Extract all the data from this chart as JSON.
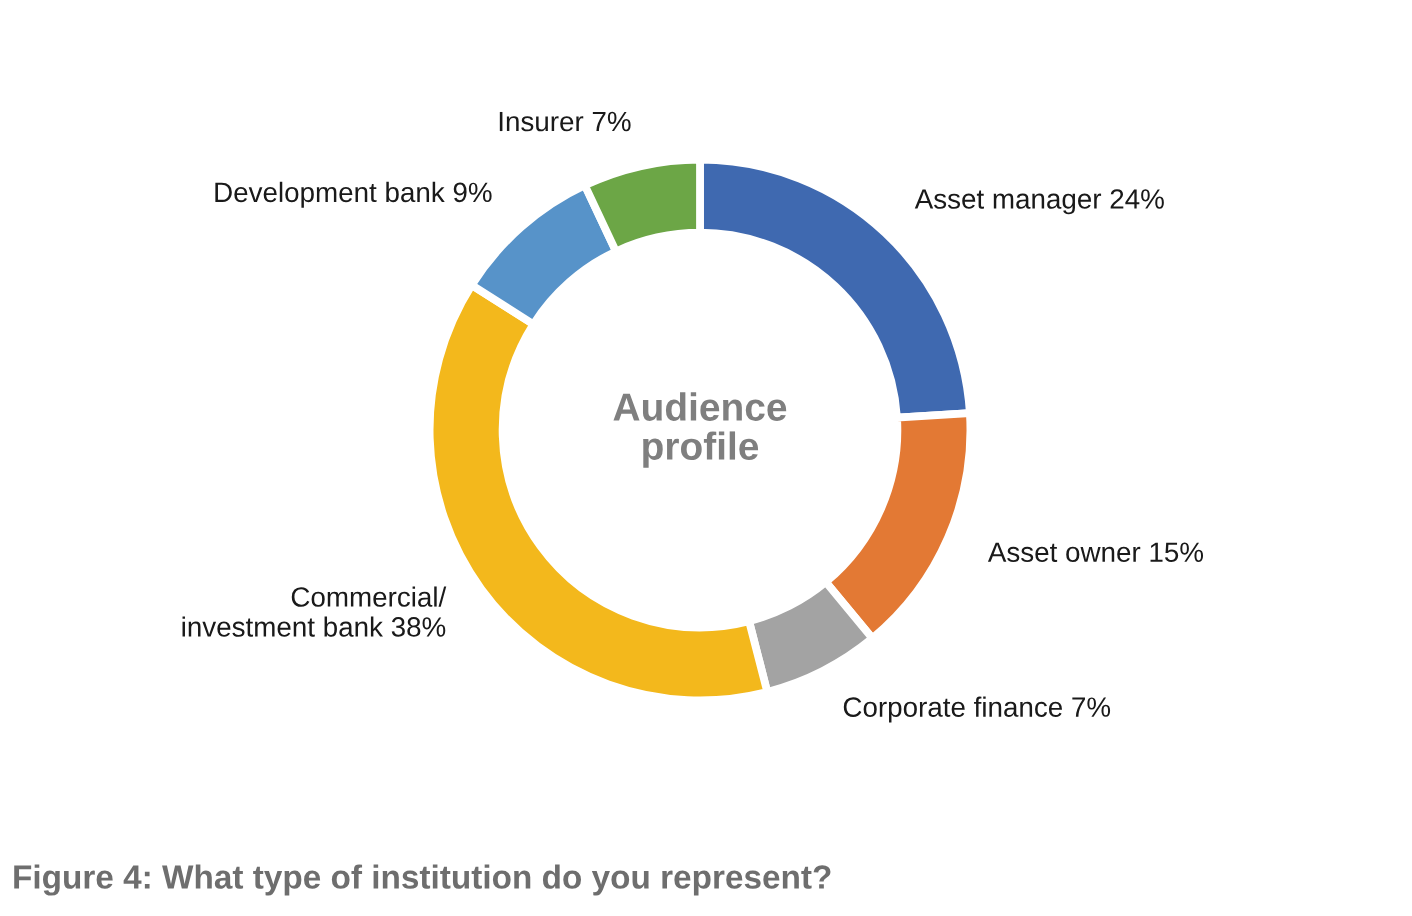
{
  "chart_data": {
    "type": "donut",
    "title": "Audience\nprofile",
    "annotations": [
      "Figure 4: What type of institution do you represent?"
    ],
    "categories": [
      "Asset manager",
      "Asset owner",
      "Corporate finance",
      "Commercial/\ninvestment bank",
      "Development bank",
      "Insurer"
    ],
    "values": [
      24,
      15,
      7,
      38,
      9,
      7
    ],
    "value_labels": [
      "24%",
      "15%",
      "7%",
      "38%",
      "9%",
      "7%"
    ],
    "colors": [
      "#3f69b0",
      "#e37934",
      "#a3a3a3",
      "#f3b81c",
      "#5793c9",
      "#6ca646"
    ]
  }
}
